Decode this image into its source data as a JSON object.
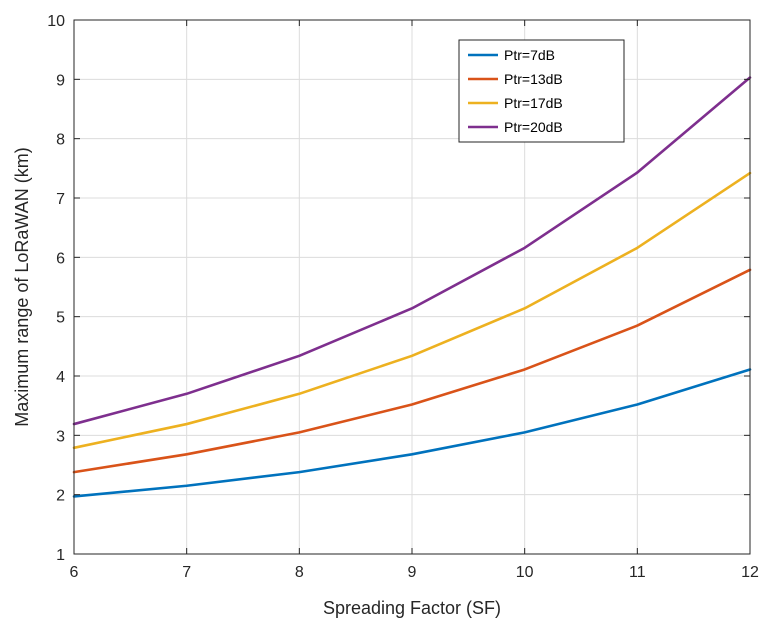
{
  "chart_data": {
    "type": "line",
    "title": "",
    "xlabel": "Spreading Factor (SF)",
    "ylabel": "Maximum range of LoRaWAN (km)",
    "x": [
      6,
      7,
      8,
      9,
      10,
      11,
      12
    ],
    "xlim": [
      6,
      12
    ],
    "ylim": [
      1,
      10
    ],
    "xticks": [
      "6",
      "7",
      "8",
      "9",
      "10",
      "11",
      "12"
    ],
    "yticks": [
      "1",
      "2",
      "3",
      "4",
      "5",
      "6",
      "7",
      "8",
      "9",
      "10"
    ],
    "grid": true,
    "legend_position": "top-right",
    "series": [
      {
        "name": "Ptr=7dB",
        "color": "#0072BD",
        "values": [
          1.97,
          2.15,
          2.38,
          2.68,
          3.05,
          3.52,
          4.11
        ]
      },
      {
        "name": "Ptr=13dB",
        "color": "#D95319",
        "values": [
          2.38,
          2.68,
          3.05,
          3.52,
          4.11,
          4.85,
          5.79
        ]
      },
      {
        "name": "Ptr=17dB",
        "color": "#EDB120",
        "values": [
          2.79,
          3.19,
          3.7,
          4.34,
          5.14,
          6.16,
          7.42
        ]
      },
      {
        "name": "Ptr=20dB",
        "color": "#7E2F8E",
        "values": [
          3.19,
          3.7,
          4.34,
          5.14,
          6.16,
          7.43,
          9.03
        ]
      }
    ]
  }
}
